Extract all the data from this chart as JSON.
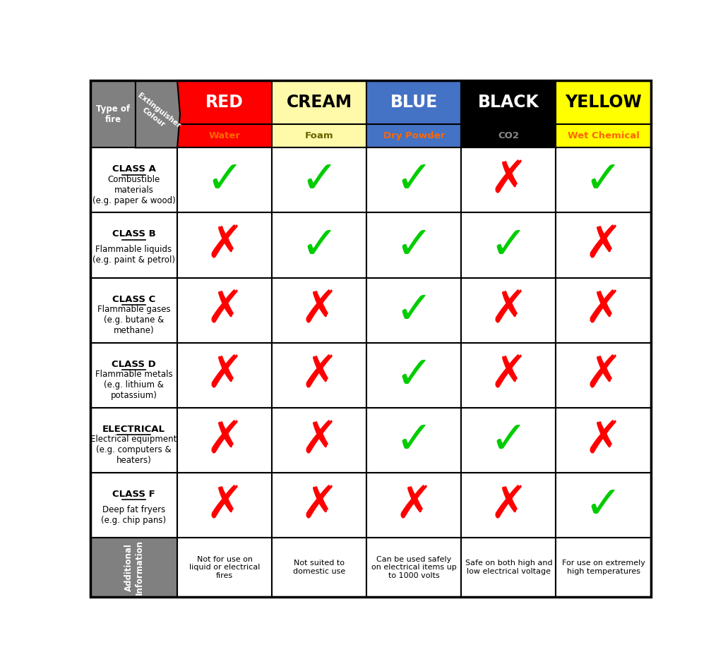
{
  "col_headers": [
    "RED",
    "CREAM",
    "BLUE",
    "BLACK",
    "YELLOW"
  ],
  "col_subtypes": [
    "Water",
    "Foam",
    "Dry Powder",
    "CO2",
    "Wet Chemical"
  ],
  "col_colors": [
    "#FF0000",
    "#FFFAAA",
    "#4472C4",
    "#000000",
    "#FFFF00"
  ],
  "col_text_colors": [
    "#FFFFFF",
    "#000000",
    "#FFFFFF",
    "#FFFFFF",
    "#000000"
  ],
  "col_subtype_text_colors": [
    "#FF6600",
    "#666600",
    "#FF6600",
    "#888888",
    "#FF6600"
  ],
  "row_headers": [
    [
      "CLASS A",
      "Combustible\nmaterials\n(e.g. paper & wood)"
    ],
    [
      "CLASS B",
      "Flammable liquids\n(e.g. paint & petrol)"
    ],
    [
      "CLASS C",
      "Flammable gases\n(e.g. butane &\nmethane)"
    ],
    [
      "CLASS D",
      "Flammable metals\n(e.g. lithium &\npotassium)"
    ],
    [
      "ELECTRICAL",
      "Electrical equipment\n(e.g. computers &\nheaters)"
    ],
    [
      "CLASS F",
      "Deep fat fryers\n(e.g. chip pans)"
    ]
  ],
  "data": [
    [
      true,
      true,
      true,
      false,
      true
    ],
    [
      false,
      true,
      true,
      true,
      false
    ],
    [
      false,
      false,
      true,
      false,
      false
    ],
    [
      false,
      false,
      true,
      false,
      false
    ],
    [
      false,
      false,
      true,
      true,
      false
    ],
    [
      false,
      false,
      false,
      false,
      true
    ]
  ],
  "additional_info": [
    "Not for use on\nliquid or electrical\nfires",
    "Not suited to\ndomestic use",
    "Can be used safely\non electrical items up\nto 1000 volts",
    "Safe on both high and\nlow electrical voltage",
    "For use on extremely\nhigh temperatures"
  ],
  "left_header_top": "Type of\nfire",
  "left_header_top2": "Extinguisher\nColour",
  "left_header_bottom": "Additional\nInformation",
  "bg_color": "#FFFFFF",
  "check_color": "#00CC00",
  "cross_color": "#FF0000",
  "header_bg": "#808080"
}
